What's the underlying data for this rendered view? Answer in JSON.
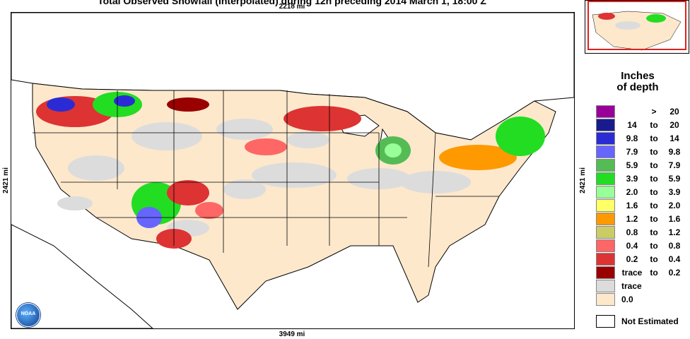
{
  "title": "Total Observed Snowfall (Interpolated) during 12h preceding 2014 March 1, 18:00 Z",
  "dims": {
    "top": "2218 mi",
    "bottom": "3949 mi",
    "left": "2421 mi",
    "right": "2421 mi"
  },
  "legend": {
    "title_line1": "Inches",
    "title_line2": "of depth",
    "rows": [
      {
        "lo": "",
        "to": ">",
        "hi": "20",
        "color": "#990099"
      },
      {
        "lo": "14",
        "to": "to",
        "hi": "20",
        "color": "#1a1a8f"
      },
      {
        "lo": "9.8",
        "to": "to",
        "hi": "14",
        "color": "#2b2bd6"
      },
      {
        "lo": "7.9",
        "to": "to",
        "hi": "9.8",
        "color": "#6666ff"
      },
      {
        "lo": "5.9",
        "to": "to",
        "hi": "7.9",
        "color": "#55bb55"
      },
      {
        "lo": "3.9",
        "to": "to",
        "hi": "5.9",
        "color": "#22dd22"
      },
      {
        "lo": "2.0",
        "to": "to",
        "hi": "3.9",
        "color": "#99ff99"
      },
      {
        "lo": "1.6",
        "to": "to",
        "hi": "2.0",
        "color": "#ffff66"
      },
      {
        "lo": "1.2",
        "to": "to",
        "hi": "1.6",
        "color": "#ff9900"
      },
      {
        "lo": "0.8",
        "to": "to",
        "hi": "1.2",
        "color": "#cccc66"
      },
      {
        "lo": "0.4",
        "to": "to",
        "hi": "0.8",
        "color": "#ff6666"
      },
      {
        "lo": "0.2",
        "to": "to",
        "hi": "0.4",
        "color": "#dd3333"
      },
      {
        "lo": "trace",
        "to": "to",
        "hi": "0.2",
        "color": "#990000"
      },
      {
        "single": "trace",
        "color": "#dcdcdc"
      },
      {
        "single": "0.0",
        "color": "#fde8cc"
      }
    ],
    "not_estimated": "Not Estimated"
  },
  "logo": "NOAA"
}
